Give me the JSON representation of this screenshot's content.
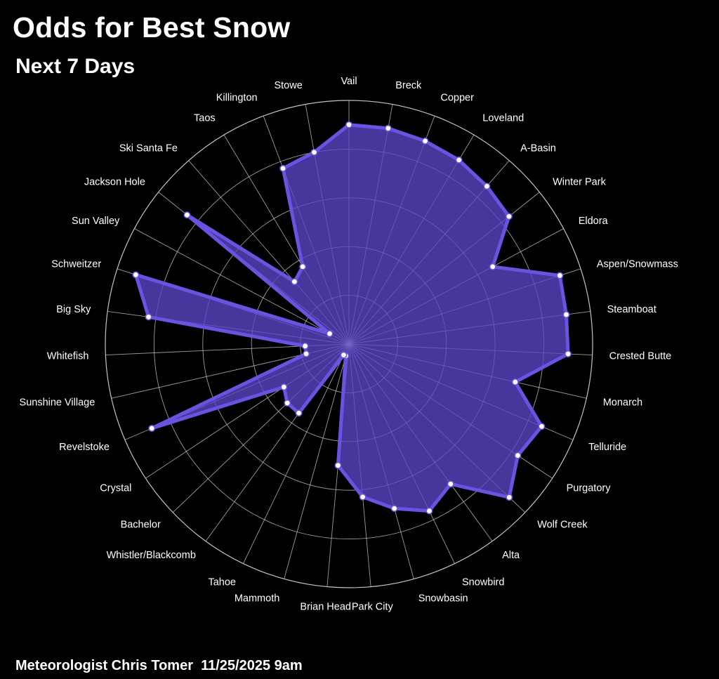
{
  "title": "Odds for Best Snow",
  "subtitle": "Next 7 Days",
  "footer": "Meteorologist Chris Tomer  11/25/2025 9am",
  "colors": {
    "background": "#000000",
    "fill": "#5b45c6",
    "stroke": "#6b52e0",
    "grid": "#cfcfcf",
    "marker_fill": "#ffffff"
  },
  "chart_data": {
    "type": "radar",
    "categories": [
      "Vail",
      "Breck",
      "Copper",
      "Loveland",
      "A-Basin",
      "Winter Park",
      "Eldora",
      "Aspen/Snowmass",
      "Steamboat",
      "Crested Butte",
      "Monarch",
      "Telluride",
      "Purgatory",
      "Wolf Creek",
      "Alta",
      "Snowbird",
      "Snowbasin",
      "Park City",
      "Brian Head",
      "Mammoth",
      "Tahoe",
      "Whistler/Blackcomb",
      "Bachelor",
      "Crystal",
      "Revelstoke",
      "Sunshine Village",
      "Whitefish",
      "Big Sky",
      "Schweitzer",
      "Sun Valley",
      "Jackson Hole",
      "Ski Santa Fe",
      "Taos",
      "Killington",
      "Stowe"
    ],
    "series": [
      {
        "values": [
          90,
          90,
          89,
          88,
          86,
          84,
          67,
          91,
          90,
          90,
          70,
          86,
          83,
          91,
          71,
          76,
          70,
          63,
          50,
          5,
          5,
          35,
          35,
          32,
          88,
          18,
          18,
          83,
          92,
          9,
          85,
          34,
          37,
          77,
          80
        ]
      }
    ],
    "rlim": [
      0,
      100
    ],
    "rings": 5,
    "grid": true,
    "legend": "none"
  }
}
